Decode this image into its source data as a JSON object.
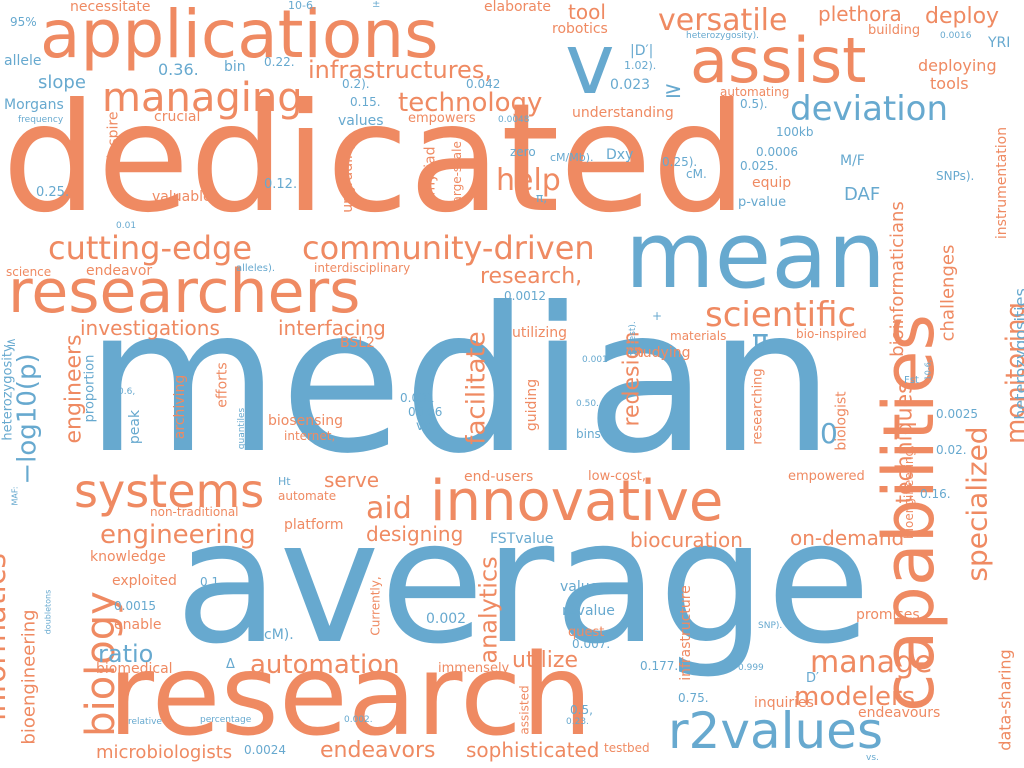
{
  "colors": {
    "orange": "#ef8a62",
    "blue": "#67a9cf"
  },
  "words": [
    {
      "t": "dedicated",
      "c": "orange"
    },
    {
      "t": "median",
      "c": "blue"
    },
    {
      "t": "average",
      "c": "blue"
    },
    {
      "t": "research",
      "c": "orange"
    },
    {
      "t": "applications",
      "c": "orange"
    },
    {
      "t": "mean",
      "c": "blue"
    },
    {
      "t": "researchers",
      "c": "orange"
    },
    {
      "t": "capabilities",
      "c": "orange"
    },
    {
      "t": "innovative",
      "c": "orange"
    },
    {
      "t": "assist",
      "c": "orange"
    },
    {
      "t": "r2values",
      "c": "blue"
    },
    {
      "t": "systems",
      "c": "orange"
    },
    {
      "t": "v",
      "c": "blue"
    },
    {
      "t": "managing",
      "c": "orange"
    },
    {
      "t": "cutting-edge",
      "c": "orange"
    },
    {
      "t": "community-driven",
      "c": "orange"
    },
    {
      "t": "deviation",
      "c": "blue"
    },
    {
      "t": "versatile",
      "c": "orange"
    },
    {
      "t": "technology",
      "c": "orange"
    },
    {
      "t": "infrastructures,",
      "c": "orange"
    },
    {
      "t": "scientific",
      "c": "orange"
    },
    {
      "t": "engineering",
      "c": "orange"
    },
    {
      "t": "automation",
      "c": "orange"
    },
    {
      "t": "manage",
      "c": "orange"
    },
    {
      "t": "modelers",
      "c": "orange"
    },
    {
      "t": "biology",
      "c": "orange"
    },
    {
      "t": "informatics",
      "c": "orange"
    },
    {
      "t": "−log10(p)",
      "c": "blue"
    },
    {
      "t": "specialized",
      "c": "orange"
    },
    {
      "t": "monitoring",
      "c": "orange"
    },
    {
      "t": "facilitate",
      "c": "orange"
    },
    {
      "t": "analytics",
      "c": "orange"
    },
    {
      "t": "help",
      "c": "orange"
    },
    {
      "t": "aid",
      "c": "orange"
    },
    {
      "t": "research,",
      "c": "orange"
    },
    {
      "t": "deploy",
      "c": "orange"
    },
    {
      "t": "plethora",
      "c": "orange"
    },
    {
      "t": "tool",
      "c": "orange"
    },
    {
      "t": "serve",
      "c": "orange"
    },
    {
      "t": "designing",
      "c": "orange"
    },
    {
      "t": "biocuration",
      "c": "orange"
    },
    {
      "t": "on-demand",
      "c": "orange"
    },
    {
      "t": "investigations",
      "c": "orange"
    },
    {
      "t": "interfacing",
      "c": "orange"
    },
    {
      "t": "engineers",
      "c": "orange"
    },
    {
      "t": "redesign",
      "c": "orange"
    },
    {
      "t": "techniques",
      "c": "orange"
    },
    {
      "t": "bioinformaticians",
      "c": "orange"
    },
    {
      "t": "challenges",
      "c": "orange"
    },
    {
      "t": "ratio",
      "c": "blue"
    },
    {
      "t": "utilize",
      "c": "orange"
    },
    {
      "t": "endeavors",
      "c": "orange"
    },
    {
      "t": "sophisticated",
      "c": "orange"
    },
    {
      "t": "microbiologists",
      "c": "orange"
    },
    {
      "t": "bioengineering",
      "c": "orange"
    },
    {
      "t": "heterozygosities",
      "c": "blue"
    },
    {
      "t": "data-sharing",
      "c": "orange"
    },
    {
      "t": "instrumentation",
      "c": "orange"
    },
    {
      "t": "deploying",
      "c": "orange"
    },
    {
      "t": "tools",
      "c": "orange"
    },
    {
      "t": "building",
      "c": "orange"
    },
    {
      "t": "robotics",
      "c": "orange"
    },
    {
      "t": "elaborate",
      "c": "orange"
    },
    {
      "t": "necessitate",
      "c": "orange"
    },
    {
      "t": "slope",
      "c": "blue"
    },
    {
      "t": "allele",
      "c": "blue"
    },
    {
      "t": "Morgans",
      "c": "blue"
    },
    {
      "t": "bin",
      "c": "blue"
    },
    {
      "t": "crucial",
      "c": "orange"
    },
    {
      "t": "valuable",
      "c": "orange"
    },
    {
      "t": "endeavor",
      "c": "orange"
    },
    {
      "t": "science",
      "c": "orange"
    },
    {
      "t": "interdisciplinary",
      "c": "orange"
    },
    {
      "t": "understanding",
      "c": "orange"
    },
    {
      "t": "empowers",
      "c": "orange"
    },
    {
      "t": "values",
      "c": "blue"
    },
    {
      "t": "upgrading",
      "c": "orange"
    },
    {
      "t": "myriad",
      "c": "orange"
    },
    {
      "t": "large-scale",
      "c": "orange"
    },
    {
      "t": "inspire",
      "c": "orange"
    },
    {
      "t": "equip",
      "c": "orange"
    },
    {
      "t": "automating",
      "c": "orange"
    },
    {
      "t": "DAF",
      "c": "blue"
    },
    {
      "t": "p-value",
      "c": "blue"
    },
    {
      "t": "M/F",
      "c": "blue"
    },
    {
      "t": "100kb",
      "c": "blue"
    },
    {
      "t": "YRI",
      "c": "blue"
    },
    {
      "t": "SNPs).",
      "c": "blue"
    },
    {
      "t": "π",
      "c": "blue"
    },
    {
      "t": "0",
      "c": "blue"
    },
    {
      "t": "BSL2",
      "c": "orange"
    },
    {
      "t": "efforts",
      "c": "orange"
    },
    {
      "t": "archiving",
      "c": "orange"
    },
    {
      "t": "biosensing",
      "c": "orange"
    },
    {
      "t": "internet,",
      "c": "orange"
    },
    {
      "t": "guiding",
      "c": "orange"
    },
    {
      "t": "studying",
      "c": "orange"
    },
    {
      "t": "researching",
      "c": "orange"
    },
    {
      "t": "biologist",
      "c": "orange"
    },
    {
      "t": "materials",
      "c": "orange"
    },
    {
      "t": "bio-inspired",
      "c": "orange"
    },
    {
      "t": "utilizing",
      "c": "orange"
    },
    {
      "t": "end-users",
      "c": "orange"
    },
    {
      "t": "low-cost,",
      "c": "orange"
    },
    {
      "t": "empowered",
      "c": "orange"
    },
    {
      "t": "automate",
      "c": "orange"
    },
    {
      "t": "platform",
      "c": "orange"
    },
    {
      "t": "non-traditional",
      "c": "orange"
    },
    {
      "t": "knowledge",
      "c": "orange"
    },
    {
      "t": "exploited",
      "c": "orange"
    },
    {
      "t": "enable",
      "c": "orange"
    },
    {
      "t": "biomedical",
      "c": "orange"
    },
    {
      "t": "immensely",
      "c": "orange"
    },
    {
      "t": "quest",
      "c": "orange"
    },
    {
      "t": "promises",
      "c": "orange"
    },
    {
      "t": "infrastructure",
      "c": "orange"
    },
    {
      "t": "inquiries",
      "c": "orange"
    },
    {
      "t": "endeavours",
      "c": "orange"
    },
    {
      "t": "testbed",
      "c": "orange"
    },
    {
      "t": "Currently,",
      "c": "orange"
    },
    {
      "t": "assisted",
      "c": "orange"
    },
    {
      "t": "bioengineering,",
      "c": "orange"
    },
    {
      "t": "heterozygosity",
      "c": "blue"
    },
    {
      "t": "proportion",
      "c": "blue"
    },
    {
      "t": "peak",
      "c": "blue"
    },
    {
      "t": "quantiles",
      "c": "blue"
    },
    {
      "t": "Ht",
      "c": "blue"
    },
    {
      "t": "FSTvalue",
      "c": "blue"
    },
    {
      "t": "valuer=",
      "c": "blue"
    },
    {
      "t": "r2value",
      "c": "blue"
    },
    {
      "t": "cM).",
      "c": "blue"
    },
    {
      "t": "Dxy",
      "c": "blue"
    },
    {
      "t": "|D′|",
      "c": "blue"
    },
    {
      "t": "cM/Mb).",
      "c": "blue"
    },
    {
      "t": "zero",
      "c": "blue"
    },
    {
      "t": "bins",
      "c": "blue"
    },
    {
      "t": "vs",
      "c": "blue"
    },
    {
      "t": "Fst",
      "c": "blue"
    },
    {
      "t": "MAF:",
      "c": "blue"
    },
    {
      "t": "frequency",
      "c": "blue"
    },
    {
      "t": "relative",
      "c": "blue"
    },
    {
      "t": "percentage",
      "c": "blue"
    },
    {
      "t": "doubletons",
      "c": "blue"
    },
    {
      "t": "heterozygosity).",
      "c": "blue"
    },
    {
      "t": "alleles).",
      "c": "blue"
    },
    {
      "t": "χ2test).",
      "c": "blue"
    },
    {
      "t": "SNP).",
      "c": "blue"
    },
    {
      "t": "Δ",
      "c": "blue"
    },
    {
      "t": "D′",
      "c": "blue"
    },
    {
      "t": "≥",
      "c": "blue"
    },
    {
      "t": "≤",
      "c": "blue"
    },
    {
      "t": "±",
      "c": "blue"
    },
    {
      "t": "+",
      "c": "blue"
    },
    {
      "t": "95%",
      "c": "blue"
    },
    {
      "t": "0.36.",
      "c": "blue"
    },
    {
      "t": "0.22.",
      "c": "blue"
    },
    {
      "t": "0.2).",
      "c": "blue"
    },
    {
      "t": "0.15.",
      "c": "blue"
    },
    {
      "t": "0.042",
      "c": "blue"
    },
    {
      "t": "0.023",
      "c": "blue"
    },
    {
      "t": "1.02).",
      "c": "blue"
    },
    {
      "t": "0.5).",
      "c": "blue"
    },
    {
      "t": "0.0016",
      "c": "blue"
    },
    {
      "t": "10-6.",
      "c": "blue"
    },
    {
      "t": "0.0048",
      "c": "blue"
    },
    {
      "t": "0.25.",
      "c": "blue"
    },
    {
      "t": "0.12.",
      "c": "blue"
    },
    {
      "t": "0.01",
      "c": "blue"
    },
    {
      "t": "0.0006",
      "c": "blue"
    },
    {
      "t": "0.025.",
      "c": "blue"
    },
    {
      "t": "0.25).",
      "c": "blue"
    },
    {
      "t": "cM.",
      "c": "blue"
    },
    {
      "t": "0.0012",
      "c": "blue"
    },
    {
      "t": "0.001",
      "c": "blue"
    },
    {
      "t": "0.031",
      "c": "blue"
    },
    {
      "t": "0.106",
      "c": "blue"
    },
    {
      "t": "0.50.",
      "c": "blue"
    },
    {
      "t": "0.0025",
      "c": "blue"
    },
    {
      "t": "0.02.",
      "c": "blue"
    },
    {
      "t": "0.16.",
      "c": "blue"
    },
    {
      "t": "0.6,",
      "c": "blue"
    },
    {
      "t": "0.002",
      "c": "blue"
    },
    {
      "t": "0.007.",
      "c": "blue"
    },
    {
      "t": "0.177.",
      "c": "blue"
    },
    {
      "t": "0.75.",
      "c": "blue"
    },
    {
      "t": "0.5,",
      "c": "blue"
    },
    {
      "t": "0.23.",
      "c": "blue"
    },
    {
      "t": "0.002.",
      "c": "blue"
    },
    {
      "t": "0.0024",
      "c": "blue"
    },
    {
      "t": "0.0015",
      "c": "blue"
    },
    {
      "t": "0.1.",
      "c": "blue"
    },
    {
      "t": "0.999",
      "c": "blue"
    },
    {
      "t": "10-6,",
      "c": "blue"
    },
    {
      "t": "vs.",
      "c": "blue"
    },
    {
      "t": "π,",
      "c": "blue"
    }
  ]
}
